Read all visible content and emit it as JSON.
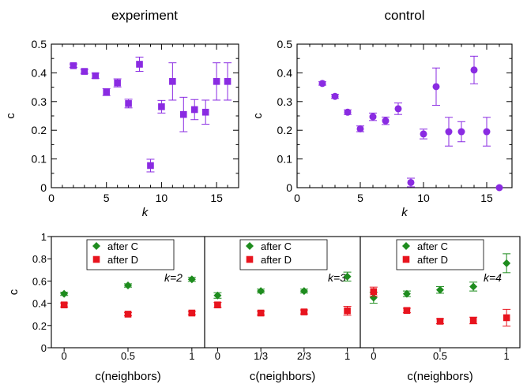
{
  "chart_data": [
    {
      "type": "scatter",
      "title": "experiment",
      "xlabel": "k",
      "ylabel": "c",
      "xlim": [
        0,
        17
      ],
      "ylim": [
        0,
        0.5
      ],
      "xticks": [
        0,
        5,
        10,
        15
      ],
      "yticks": [
        0,
        0.1,
        0.2,
        0.3,
        0.4,
        0.5
      ],
      "marker": "square",
      "color": "#8a2be2",
      "series": [
        {
          "x": [
            2,
            3,
            4,
            5,
            6,
            7,
            8,
            9,
            10,
            11,
            12,
            13,
            14,
            15,
            16
          ],
          "y": [
            0.425,
            0.405,
            0.39,
            0.333,
            0.365,
            0.293,
            0.43,
            0.077,
            0.282,
            0.37,
            0.255,
            0.272,
            0.263,
            0.37,
            0.37
          ],
          "err": [
            0.006,
            0.007,
            0.009,
            0.012,
            0.014,
            0.015,
            0.025,
            0.022,
            0.022,
            0.065,
            0.06,
            0.035,
            0.042,
            0.065,
            0.065
          ]
        }
      ]
    },
    {
      "type": "scatter",
      "title": "control",
      "xlabel": "k",
      "ylabel": "c",
      "xlim": [
        0,
        17
      ],
      "ylim": [
        0,
        0.5
      ],
      "xticks": [
        0,
        5,
        10,
        15
      ],
      "yticks": [
        0,
        0.1,
        0.2,
        0.3,
        0.4,
        0.5
      ],
      "marker": "circle",
      "color": "#8a2be2",
      "series": [
        {
          "x": [
            2,
            3,
            4,
            5,
            6,
            7,
            8,
            9,
            10,
            11,
            12,
            13,
            14,
            15,
            16
          ],
          "y": [
            0.363,
            0.318,
            0.263,
            0.205,
            0.247,
            0.233,
            0.275,
            0.018,
            0.187,
            0.352,
            0.195,
            0.195,
            0.41,
            0.195,
            0
          ],
          "err": [
            0.006,
            0.007,
            0.008,
            0.01,
            0.013,
            0.013,
            0.02,
            0.015,
            0.017,
            0.065,
            0.05,
            0.035,
            0.048,
            0.05,
            0.001
          ]
        }
      ]
    },
    {
      "type": "scatter",
      "annotation": "k=2",
      "xlabel": "c(neighbors)",
      "ylabel": "c",
      "xlim": [
        -0.1,
        1.1
      ],
      "ylim": [
        0,
        1
      ],
      "xticks": [
        0,
        0.5,
        1
      ],
      "xticklabels": [
        "0",
        "0.5",
        "1"
      ],
      "yticks": [
        0,
        0.2,
        0.4,
        0.6,
        0.8,
        1
      ],
      "yticklabels": [
        "0",
        "0.2",
        "0.4",
        "0.6",
        "0.8",
        "1"
      ],
      "legend": "top-center",
      "series": [
        {
          "name": "after C",
          "marker": "diamond",
          "color": "#1e8c1e",
          "x": [
            0,
            0.5,
            1
          ],
          "y": [
            0.485,
            0.56,
            0.615
          ],
          "err": [
            0.015,
            0.015,
            0.018
          ]
        },
        {
          "name": "after D",
          "marker": "square",
          "color": "#e8141e",
          "x": [
            0,
            0.5,
            1
          ],
          "y": [
            0.385,
            0.302,
            0.312
          ],
          "err": [
            0.018,
            0.015,
            0.015
          ]
        }
      ]
    },
    {
      "type": "scatter",
      "annotation": "k=3",
      "xlabel": "c(neighbors)",
      "ylabel": "c",
      "xlim": [
        -0.1,
        1.1
      ],
      "ylim": [
        0,
        1
      ],
      "xticks": [
        0,
        0.3333,
        0.6667,
        1
      ],
      "xticklabels": [
        "0",
        "1/3",
        "2/3",
        "1"
      ],
      "yticks": [
        0,
        0.2,
        0.4,
        0.6,
        0.8,
        1
      ],
      "legend": "top-center",
      "series": [
        {
          "name": "after C",
          "marker": "diamond",
          "color": "#1e8c1e",
          "x": [
            0,
            0.3333,
            0.6667,
            1
          ],
          "y": [
            0.47,
            0.51,
            0.51,
            0.64
          ],
          "err": [
            0.025,
            0.018,
            0.018,
            0.04
          ]
        },
        {
          "name": "after D",
          "marker": "square",
          "color": "#e8141e",
          "x": [
            0,
            0.3333,
            0.6667,
            1
          ],
          "y": [
            0.385,
            0.312,
            0.322,
            0.332
          ],
          "err": [
            0.022,
            0.018,
            0.018,
            0.04
          ]
        }
      ]
    },
    {
      "type": "scatter",
      "annotation": "k=4",
      "xlabel": "c(neighbors)",
      "ylabel": "c",
      "xlim": [
        -0.1,
        1.1
      ],
      "ylim": [
        0,
        1
      ],
      "xticks": [
        0,
        0.5,
        1
      ],
      "xticklabels": [
        "0",
        "0.5",
        "1"
      ],
      "yticks": [
        0,
        0.2,
        0.4,
        0.6,
        0.8,
        1
      ],
      "legend": "top-center",
      "series": [
        {
          "name": "after C",
          "marker": "diamond",
          "color": "#1e8c1e",
          "x": [
            0,
            0.25,
            0.5,
            0.75,
            1
          ],
          "y": [
            0.45,
            0.485,
            0.52,
            0.55,
            0.76
          ],
          "err": [
            0.05,
            0.025,
            0.03,
            0.04,
            0.085
          ]
        },
        {
          "name": "after D",
          "marker": "square",
          "color": "#e8141e",
          "x": [
            0,
            0.25,
            0.5,
            0.75,
            1
          ],
          "y": [
            0.505,
            0.335,
            0.238,
            0.245,
            0.27
          ],
          "err": [
            0.04,
            0.02,
            0.022,
            0.03,
            0.075
          ]
        }
      ]
    }
  ]
}
